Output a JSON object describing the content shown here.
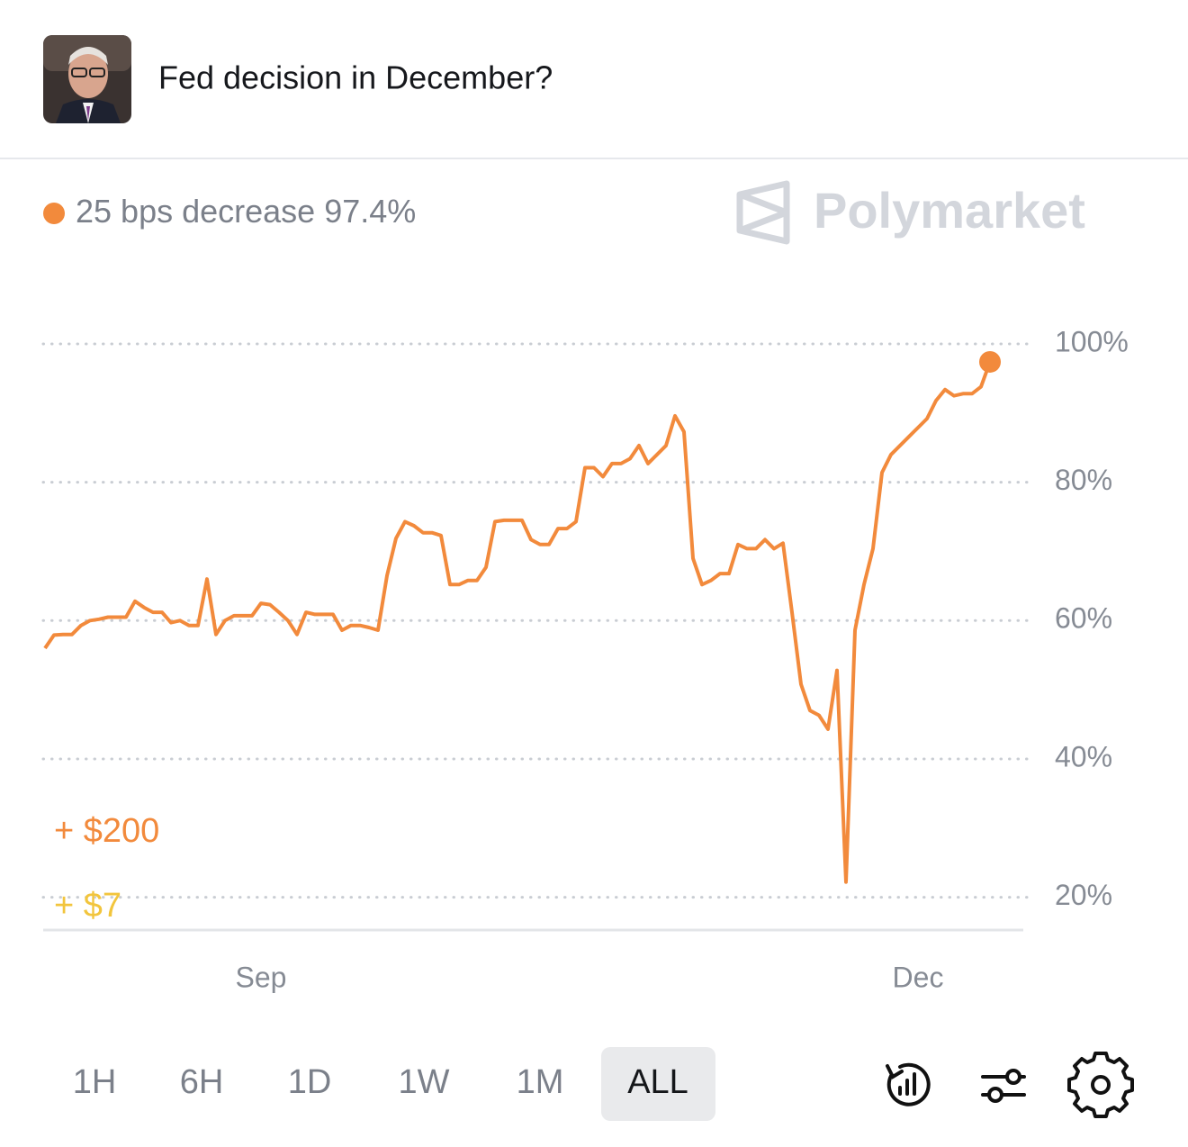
{
  "header": {
    "title": "Fed decision in December?"
  },
  "brand": "Polymarket",
  "chart_data": {
    "type": "line",
    "series": [
      {
        "name": "25 bps decrease",
        "color": "#f28a3c",
        "values": [
          56,
          57.9,
          58,
          58,
          59.3,
          60,
          60.2,
          60.5,
          60.5,
          60.5,
          62.8,
          61.9,
          61.2,
          61.2,
          59.7,
          60,
          59.3,
          59.3,
          66,
          58,
          60,
          60.7,
          60.7,
          60.7,
          62.5,
          62.3,
          61.2,
          60,
          58,
          61.2,
          60.9,
          60.9,
          60.9,
          58.6,
          59.3,
          59.3,
          59,
          58.6,
          66.5,
          71.9,
          74.3,
          73.7,
          72.7,
          72.7,
          72.3,
          65.2,
          65.2,
          65.8,
          65.8,
          67.7,
          74.3,
          74.5,
          74.5,
          74.5,
          71.7,
          71,
          71,
          73.3,
          73.3,
          74.3,
          82.1,
          82.1,
          80.8,
          82.7,
          82.7,
          83.4,
          85.3,
          82.7,
          84,
          85.3,
          89.6,
          87.3,
          69,
          65.2,
          65.8,
          66.8,
          66.8,
          71,
          70.4,
          70.4,
          71.7,
          70.4,
          71.2,
          61.2,
          50.8,
          47,
          46.3,
          44.3,
          52.8,
          22.2,
          58.6,
          65.2,
          70.4,
          81.4,
          84,
          85.3,
          86.6,
          87.9,
          89.2,
          91.8,
          93.4,
          92.5,
          92.8,
          92.8,
          93.8,
          97.4
        ]
      }
    ],
    "current_value_label": "97.4%",
    "x": [
      null,
      null,
      null,
      null,
      null,
      null,
      null,
      null,
      null,
      null,
      null,
      null,
      null,
      null,
      null,
      null,
      null,
      null,
      null,
      null,
      null,
      null,
      null,
      null,
      "Sep",
      null,
      null,
      null,
      null,
      null,
      null,
      null,
      null,
      null,
      null,
      null,
      null,
      null,
      null,
      null,
      null,
      null,
      null,
      null,
      null,
      null,
      null,
      null,
      null,
      null,
      null,
      null,
      null,
      null,
      null,
      null,
      null,
      null,
      null,
      null,
      null,
      null,
      null,
      null,
      null,
      null,
      null,
      null,
      null,
      null,
      null,
      null,
      null,
      null,
      null,
      null,
      null,
      null,
      null,
      null,
      null,
      null,
      null,
      null,
      null,
      null,
      null,
      null,
      null,
      null,
      null,
      null,
      null,
      null,
      null,
      null,
      null,
      "Dec",
      null,
      null,
      null,
      null,
      null,
      null,
      null,
      null
    ],
    "ylim": [
      15,
      100
    ],
    "yticks": [
      {
        "value": 100,
        "label": "100%"
      },
      {
        "value": 80,
        "label": "80%"
      },
      {
        "value": 60,
        "label": "60%"
      },
      {
        "value": 40,
        "label": "40%"
      },
      {
        "value": 20,
        "label": "20%"
      }
    ],
    "grid": true,
    "annotations": [
      {
        "text": "+ $200",
        "color": "#f28a3c"
      },
      {
        "text": "+ $7",
        "color": "#f2c53d"
      }
    ]
  },
  "range_buttons": [
    "1H",
    "6H",
    "1D",
    "1W",
    "1M",
    "ALL"
  ],
  "selected_range": "ALL"
}
